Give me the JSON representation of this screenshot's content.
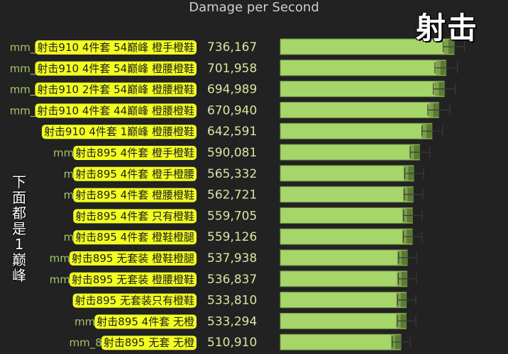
{
  "header": {
    "title": "Damage per Second",
    "corner_label": "射击"
  },
  "side_note": "下面都是1巅峰",
  "colors": {
    "bar": "#a6d66a",
    "bar_edge": "#5a7a34",
    "whisker": "#3a3a3a",
    "value_text": "#d6e7a0",
    "label_highlight": "#f2ff21",
    "label_text": "#1e1e1e",
    "prefix_text": "#a5c56a"
  },
  "chart_data": {
    "type": "bar",
    "orientation": "horizontal",
    "title": "Damage per Second",
    "rows": [
      {
        "prefix": "mm_",
        "label": "射击910 4件套 54巅峰 橙手橙鞋",
        "value": 736167,
        "value_label": "736,167",
        "low": 690000,
        "high": 780000
      },
      {
        "prefix": "mm_",
        "label": "射击910 4件套 54巅峰 橙腰橙鞋",
        "value": 701958,
        "value_label": "701,958",
        "low": 655000,
        "high": 750000
      },
      {
        "prefix": "mm_",
        "label": "射击910 2件套 54巅峰 橙腰橙鞋",
        "value": 694989,
        "value_label": "694,989",
        "low": 648000,
        "high": 742000
      },
      {
        "prefix": "mm_",
        "label": "射击910 4件套 44巅峰 橙腰橙鞋",
        "value": 670940,
        "value_label": "670,940",
        "low": 625000,
        "high": 718000
      },
      {
        "prefix": "",
        "label": "射击910 4件套 1巅峰 橙腰橙鞋",
        "value": 642591,
        "value_label": "642,591",
        "low": 600000,
        "high": 688000
      },
      {
        "prefix": "mm",
        "label": "射击895 4件套 橙手橙鞋",
        "value": 590081,
        "value_label": "590,081",
        "low": 550000,
        "high": 633000
      },
      {
        "prefix": "m",
        "label": "射击895 4件套 橙手橙腰",
        "value": 565332,
        "value_label": "565,332",
        "low": 527000,
        "high": 607000
      },
      {
        "prefix": "m",
        "label": "射击895 4件套 橙腰橙鞋",
        "value": 562721,
        "value_label": "562,721",
        "low": 525000,
        "high": 604000
      },
      {
        "prefix": "",
        "label": "射击895 4件套 只有橙鞋",
        "value": 559705,
        "value_label": "559,705",
        "low": 522000,
        "high": 601000
      },
      {
        "prefix": "m",
        "label": "射击895 4件套 橙鞋橙腿",
        "value": 559126,
        "value_label": "559,126",
        "low": 521000,
        "high": 600000
      },
      {
        "prefix": "mm",
        "label": "射击895 无套装 橙鞋橙腿",
        "value": 537938,
        "value_label": "537,938",
        "low": 501000,
        "high": 578000
      },
      {
        "prefix": "mm",
        "label": "射击895 无套装 橙腰橙鞋",
        "value": 536837,
        "value_label": "536,837",
        "low": 500000,
        "high": 577000
      },
      {
        "prefix": "",
        "label": "射击895 无套装只有橙鞋",
        "value": 533810,
        "value_label": "533,810",
        "low": 497000,
        "high": 574000
      },
      {
        "prefix": "mm",
        "label": "射击895 4件套 无橙",
        "value": 533294,
        "value_label": "533,294",
        "low": 496000,
        "high": 574000
      },
      {
        "prefix": "mm_8",
        "label": "射击895 无套 无橙",
        "value": 510910,
        "value_label": "510,910",
        "low": 475000,
        "high": 550000
      }
    ]
  }
}
